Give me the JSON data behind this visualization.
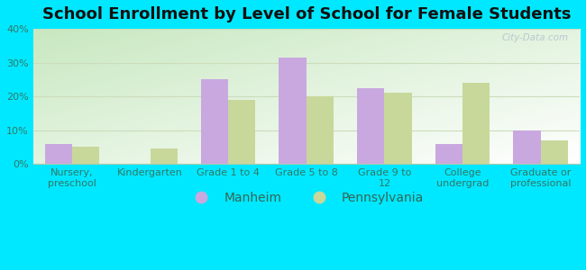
{
  "title": "School Enrollment by Level of School for Female Students",
  "categories": [
    "Nursery,\npreschool",
    "Kindergarten",
    "Grade 1 to 4",
    "Grade 5 to 8",
    "Grade 9 to\n12",
    "College\nundergrad",
    "Graduate or\nprofessional"
  ],
  "manheim": [
    6.0,
    0.0,
    25.0,
    31.5,
    22.5,
    6.0,
    10.0
  ],
  "pennsylvania": [
    5.0,
    4.5,
    19.0,
    20.0,
    21.0,
    24.0,
    7.0
  ],
  "manheim_color": "#c9a8e0",
  "pennsylvania_color": "#c8d89a",
  "background_color": "#00e8ff",
  "ylim": [
    0,
    40
  ],
  "yticks": [
    0,
    10,
    20,
    30,
    40
  ],
  "bar_width": 0.35,
  "title_fontsize": 13,
  "tick_fontsize": 8,
  "legend_fontsize": 10,
  "watermark_text": "City-Data.com",
  "grid_color": "#ccddbb",
  "text_color": "#336655",
  "label_color": "#337766"
}
